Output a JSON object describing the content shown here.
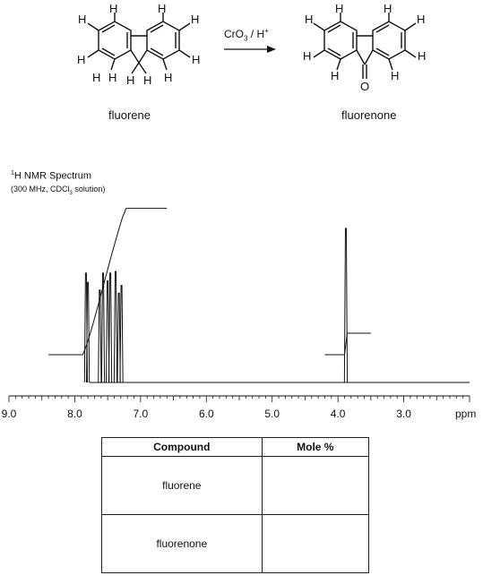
{
  "scheme": {
    "reactant_name": "fluorene",
    "product_name": "fluorenone",
    "reagent": {
      "main": "CrO",
      "sub": "3",
      "rest": " / H",
      "sup": "+"
    },
    "h": "H",
    "o": "O"
  },
  "spectrum": {
    "title_sup": "1",
    "title": "H NMR Spectrum",
    "conditions": {
      "pre": "(300 MHz, CDCl",
      "sub": "3",
      "post": " solution)"
    },
    "unit": "ppm"
  },
  "chart_data": {
    "type": "line",
    "title": "1H NMR Spectrum",
    "xlabel": "ppm",
    "xlim": [
      9.0,
      2.0
    ],
    "x_reversed": true,
    "ticks": [
      "9.0",
      "8.0",
      "7.0",
      "6.0",
      "5.0",
      "4.0",
      "3.0"
    ],
    "tick_values": [
      9.0,
      8.0,
      7.0,
      6.0,
      5.0,
      4.0,
      3.0
    ],
    "peaks": [
      {
        "ppm": 7.83,
        "height": 0.71
      },
      {
        "ppm": 7.8,
        "height": 0.65
      },
      {
        "ppm": 7.62,
        "height": 0.6
      },
      {
        "ppm": 7.57,
        "height": 0.71
      },
      {
        "ppm": 7.5,
        "height": 0.66
      },
      {
        "ppm": 7.46,
        "height": 0.71
      },
      {
        "ppm": 7.38,
        "height": 0.72
      },
      {
        "ppm": 7.33,
        "height": 0.58
      },
      {
        "ppm": 7.29,
        "height": 0.63
      },
      {
        "ppm": 3.88,
        "height": 1.0
      }
    ],
    "integrals": [
      {
        "from": 8.4,
        "to": 6.6,
        "start_level": 0.18,
        "end_level": 1.13
      },
      {
        "from": 4.2,
        "to": 3.5,
        "start_level": 0.18,
        "end_level": 0.32
      }
    ]
  },
  "table": {
    "headers": [
      "Compound",
      "Mole %"
    ],
    "rows": [
      {
        "compound": "fluorene",
        "mole": ""
      },
      {
        "compound": "fluorenone",
        "mole": ""
      }
    ]
  }
}
